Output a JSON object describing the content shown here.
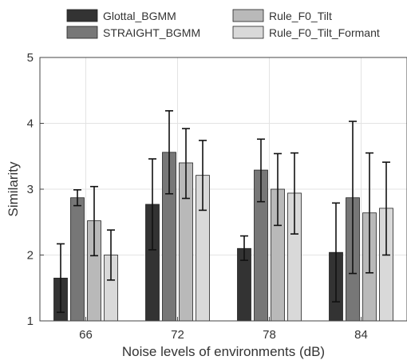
{
  "chart_data": {
    "type": "bar",
    "title": "",
    "xlabel": "Noise levels of environments (dB)",
    "ylabel": "Similarity",
    "ylim": [
      1,
      5
    ],
    "yticks": [
      1,
      2,
      3,
      4,
      5
    ],
    "grid": true,
    "legend": "top",
    "categories": [
      "66",
      "72",
      "78",
      "84"
    ],
    "series": [
      {
        "name": "Glottal_BGMM",
        "color": "#333333",
        "values": [
          1.65,
          2.77,
          2.1,
          2.04
        ],
        "err_low": [
          1.13,
          2.08,
          1.92,
          1.29
        ],
        "err_high": [
          2.17,
          3.46,
          2.29,
          2.79
        ]
      },
      {
        "name": "STRAIGHT_BGMM",
        "color": "#777777",
        "values": [
          2.87,
          3.56,
          3.29,
          2.87
        ],
        "err_low": [
          2.75,
          2.93,
          2.81,
          1.72
        ],
        "err_high": [
          2.99,
          4.19,
          3.76,
          4.03
        ]
      },
      {
        "name": "Rule_F0_Tilt",
        "color": "#b9b9b9",
        "values": [
          2.52,
          3.4,
          3.0,
          2.64
        ],
        "err_low": [
          1.99,
          2.86,
          2.45,
          1.73
        ],
        "err_high": [
          3.04,
          3.92,
          3.54,
          3.55
        ]
      },
      {
        "name": "Rule_F0_Tilt_Formant",
        "color": "#d9d9d9",
        "values": [
          2.0,
          3.21,
          2.94,
          2.71
        ],
        "err_low": [
          1.62,
          2.68,
          2.32,
          2.0
        ],
        "err_high": [
          2.38,
          3.74,
          3.55,
          3.41
        ]
      }
    ]
  }
}
